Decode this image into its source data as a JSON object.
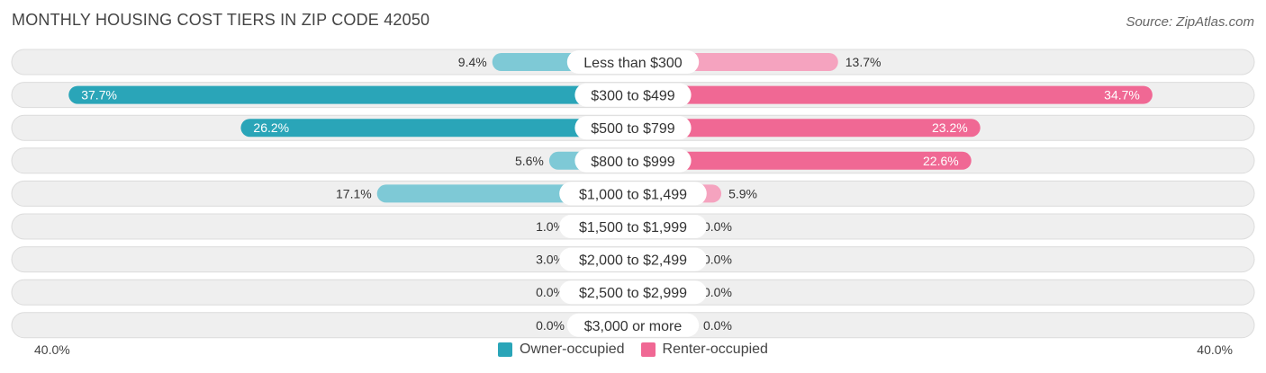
{
  "title": "MONTHLY HOUSING COST TIERS IN ZIP CODE 42050",
  "source": "Source: ZipAtlas.com",
  "colors": {
    "owner_strong": "#2aa5b8",
    "owner_light": "#7ec9d6",
    "renter_strong": "#f06894",
    "renter_light": "#f5a3bf",
    "track": "#efefef",
    "track_border": "#dcdcdc"
  },
  "legend": {
    "owner": "Owner-occupied",
    "renter": "Renter-occupied"
  },
  "axis": {
    "left_label": "40.0%",
    "right_label": "40.0%"
  },
  "chart_data": {
    "type": "bar",
    "orientation": "horizontal-diverging",
    "title": "MONTHLY HOUSING COST TIERS IN ZIP CODE 42050",
    "xlim": [
      -40,
      40
    ],
    "categories": [
      "Less than $300",
      "$300 to $499",
      "$500 to $799",
      "$800 to $999",
      "$1,000 to $1,499",
      "$1,500 to $1,999",
      "$2,000 to $2,499",
      "$2,500 to $2,999",
      "$3,000 or more"
    ],
    "series": [
      {
        "name": "Owner-occupied",
        "values": [
          9.4,
          37.7,
          26.2,
          5.6,
          17.1,
          1.0,
          3.0,
          0.0,
          0.0
        ],
        "labels": [
          "9.4%",
          "37.7%",
          "26.2%",
          "5.6%",
          "17.1%",
          "1.0%",
          "3.0%",
          "0.0%",
          "0.0%"
        ]
      },
      {
        "name": "Renter-occupied",
        "values": [
          13.7,
          34.7,
          23.2,
          22.6,
          5.9,
          0.0,
          0.0,
          0.0,
          0.0
        ],
        "labels": [
          "13.7%",
          "34.7%",
          "23.2%",
          "22.6%",
          "5.9%",
          "0.0%",
          "0.0%",
          "0.0%",
          "0.0%"
        ]
      }
    ]
  }
}
